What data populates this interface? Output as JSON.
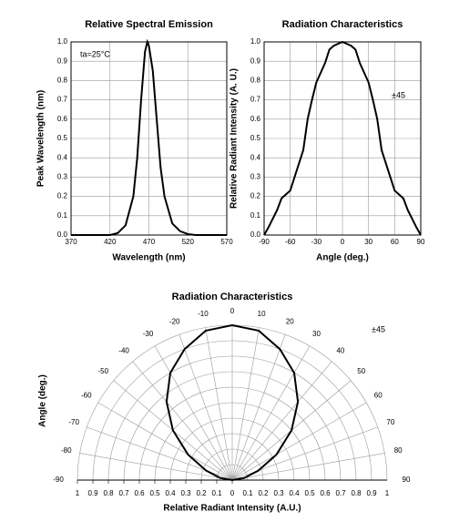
{
  "chart_data": [
    {
      "type": "line",
      "title": "Relative Spectral Emission",
      "xlabel": "Wavelength (nm)",
      "ylabel": "Peak Wavelength (nm)",
      "annotation": "ta=25°C",
      "x": [
        370,
        420,
        430,
        440,
        450,
        455,
        460,
        465,
        468,
        470,
        475,
        480,
        485,
        490,
        500,
        510,
        520,
        530,
        570
      ],
      "values": [
        0,
        0,
        0.01,
        0.05,
        0.2,
        0.4,
        0.7,
        0.95,
        1.0,
        0.98,
        0.85,
        0.6,
        0.35,
        0.2,
        0.06,
        0.02,
        0.005,
        0,
        0
      ],
      "color": "#000000",
      "xlim": [
        370,
        570
      ],
      "ylim": [
        0,
        1
      ],
      "xticks": [
        370,
        420,
        470,
        520,
        570
      ],
      "yticks": [
        {
          "value": 0,
          "label": "0.0"
        },
        0.1,
        0.2,
        0.3,
        0.4,
        0.5,
        0.6,
        0.7,
        0.8,
        0.9,
        {
          "value": 1,
          "label": "1.0"
        }
      ],
      "grid": true
    },
    {
      "type": "line",
      "title": "Radiation Characteristics",
      "xlabel": "Angle (deg.)",
      "ylabel": "Relative Radiant Intensity (A. U.)",
      "annotation": "±45",
      "x": [
        -90,
        -85,
        -75,
        -70,
        -60,
        -50,
        -45,
        -40,
        -35,
        -30,
        -20,
        -15,
        -10,
        0,
        10,
        15,
        20,
        30,
        35,
        40,
        45,
        50,
        60,
        70,
        75,
        85,
        90
      ],
      "values": [
        0,
        0.04,
        0.13,
        0.19,
        0.23,
        0.37,
        0.44,
        0.6,
        0.7,
        0.79,
        0.89,
        0.96,
        0.98,
        1.0,
        0.98,
        0.96,
        0.89,
        0.79,
        0.7,
        0.6,
        0.44,
        0.37,
        0.23,
        0.19,
        0.13,
        0.04,
        0
      ],
      "color": "#000000",
      "xlim": [
        -90,
        90
      ],
      "ylim": [
        0,
        1
      ],
      "xticks": [
        -90,
        -60,
        -30,
        0,
        30,
        60,
        90
      ],
      "yticks": [
        {
          "value": 0,
          "label": "0.0"
        },
        0.1,
        0.2,
        0.3,
        0.4,
        0.5,
        0.6,
        0.7,
        0.8,
        0.9,
        {
          "value": 1,
          "label": "1.0"
        }
      ],
      "grid": true
    },
    {
      "type": "polar",
      "title": "Radiation Characteristics",
      "xlabel": "Relative Radiant Intensity (A.U.)",
      "ylabel": "Angle (deg.)",
      "annotation": "±45",
      "x": [
        -90,
        -80,
        -70,
        -60,
        -50,
        -40,
        -30,
        -20,
        -10,
        0,
        10,
        20,
        30,
        40,
        50,
        60,
        70,
        80,
        90
      ],
      "values": [
        0,
        0.08,
        0.18,
        0.33,
        0.5,
        0.66,
        0.8,
        0.9,
        0.98,
        1.0,
        0.98,
        0.9,
        0.8,
        0.66,
        0.5,
        0.33,
        0.18,
        0.08,
        0
      ],
      "color": "#000000",
      "xlim": [
        -1,
        1
      ],
      "xticks": [
        {
          "value": -1,
          "label": "1"
        },
        {
          "value": -0.9,
          "label": "0.9"
        },
        {
          "value": -0.8,
          "label": "0.8"
        },
        {
          "value": -0.7,
          "label": "0.7"
        },
        {
          "value": -0.6,
          "label": "0.6"
        },
        {
          "value": -0.5,
          "label": "0.5"
        },
        {
          "value": -0.4,
          "label": "0.4"
        },
        {
          "value": -0.3,
          "label": "0.3"
        },
        {
          "value": -0.2,
          "label": "0.2"
        },
        {
          "value": -0.1,
          "label": "0.1"
        },
        0,
        0.1,
        0.2,
        0.3,
        0.4,
        0.5,
        0.6,
        0.7,
        0.8,
        0.9,
        1
      ],
      "angle_ticks": [
        -90,
        -80,
        -70,
        -60,
        -50,
        -40,
        -30,
        -20,
        -10,
        0,
        10,
        20,
        30,
        40,
        50,
        60,
        70,
        80,
        90
      ],
      "grid": true
    }
  ]
}
